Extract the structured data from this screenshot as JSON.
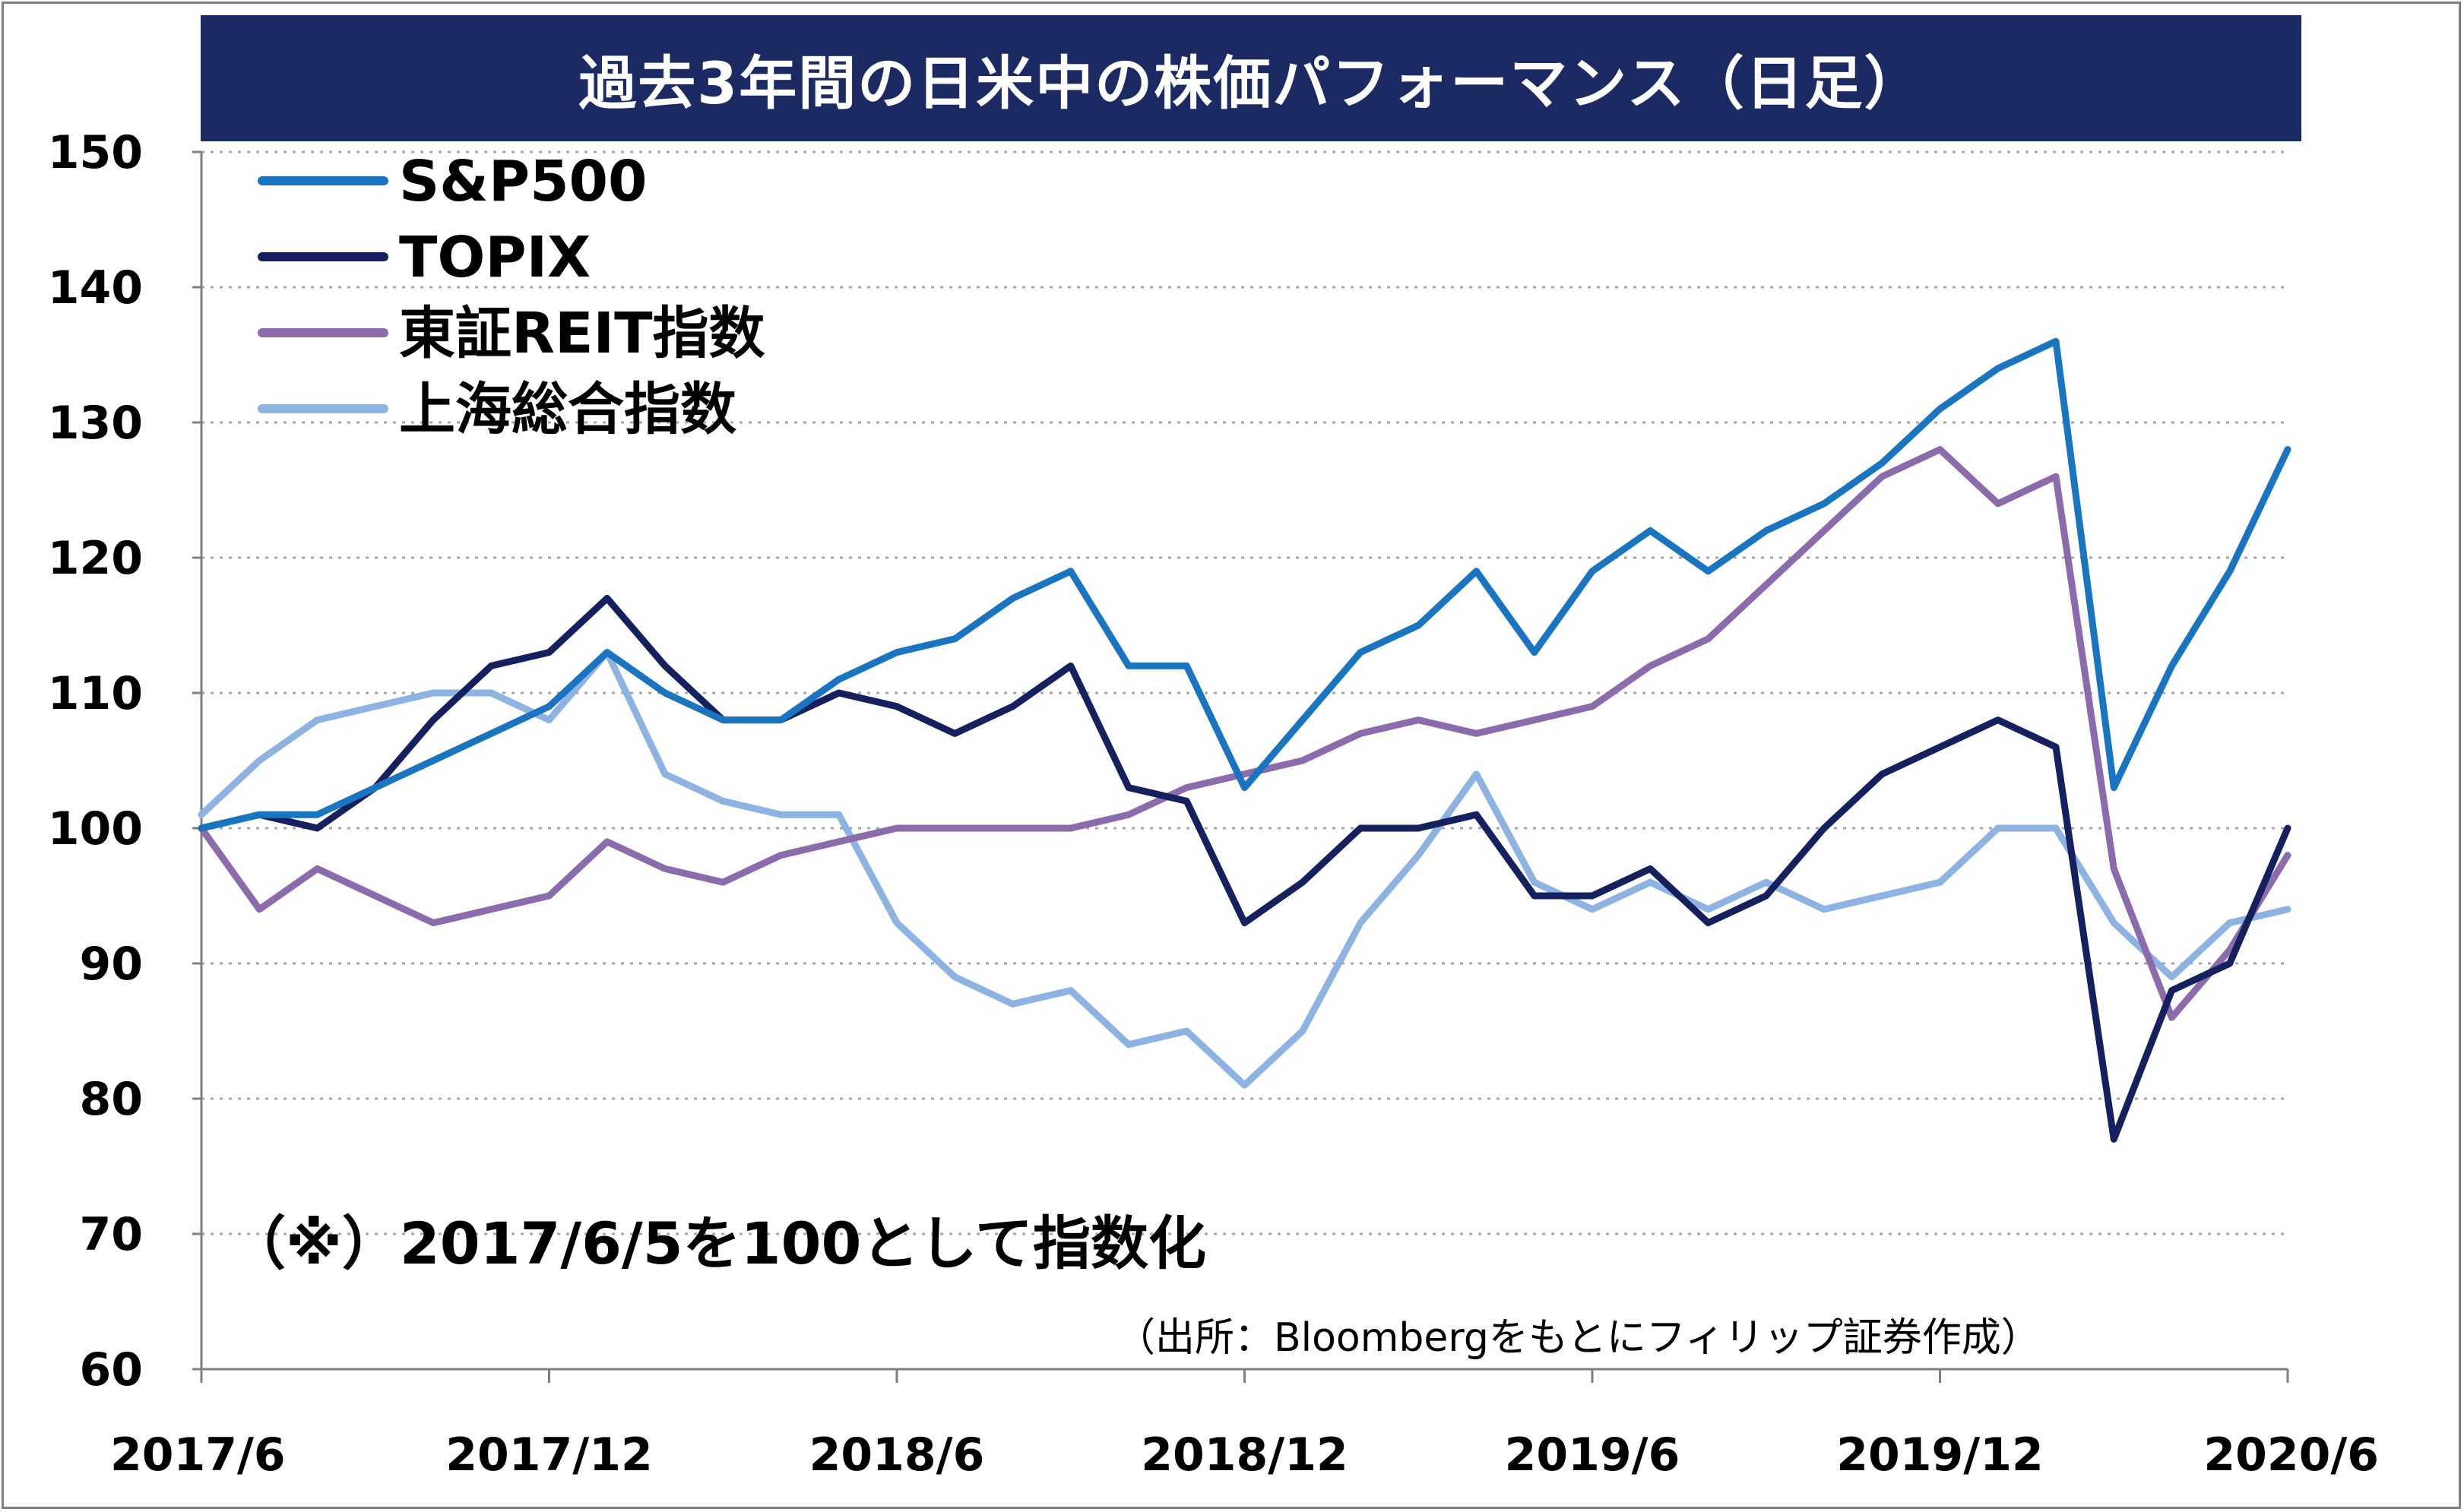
{
  "chart_data": {
    "type": "line",
    "title": "過去3年間の日米中の株価パフォーマンス（日足）",
    "xlabel": "",
    "ylabel": "",
    "x_ticks": [
      "2017/6",
      "2017/12",
      "2018/6",
      "2018/12",
      "2019/6",
      "2019/12",
      "2020/6"
    ],
    "x_range": [
      "2017/6",
      "2020/6"
    ],
    "y_ticks": [
      60,
      70,
      80,
      90,
      100,
      110,
      120,
      130,
      140,
      150
    ],
    "ylim": [
      60,
      150
    ],
    "grid": "horizontal dotted",
    "legend_position": "top-left",
    "note": "（※）2017/6/5を100として指数化",
    "source": "（出所：Bloombergをもとにフィリップ証券作成）",
    "x_dates": [
      "2017-06",
      "2017-07",
      "2017-08",
      "2017-09",
      "2017-10",
      "2017-11",
      "2017-12",
      "2018-01",
      "2018-02",
      "2018-03",
      "2018-04",
      "2018-05",
      "2018-06",
      "2018-07",
      "2018-08",
      "2018-09",
      "2018-10",
      "2018-11",
      "2018-12",
      "2019-01",
      "2019-02",
      "2019-03",
      "2019-04",
      "2019-05",
      "2019-06",
      "2019-07",
      "2019-08",
      "2019-09",
      "2019-10",
      "2019-11",
      "2019-12",
      "2020-01",
      "2020-02",
      "2020-03",
      "2020-04",
      "2020-05",
      "2020-06"
    ],
    "series": [
      {
        "name": "S&P500",
        "color": "#1a75c0",
        "values": [
          100,
          101,
          101,
          103,
          105,
          107,
          109,
          113,
          110,
          108,
          108,
          111,
          113,
          114,
          117,
          119,
          112,
          112,
          103,
          108,
          113,
          115,
          119,
          113,
          119,
          122,
          119,
          122,
          124,
          127,
          131,
          134,
          136,
          103,
          112,
          119,
          128
        ]
      },
      {
        "name": "TOPIX",
        "color": "#14215e",
        "values": [
          100,
          101,
          100,
          103,
          108,
          112,
          113,
          117,
          112,
          108,
          108,
          110,
          109,
          107,
          109,
          112,
          103,
          102,
          93,
          96,
          100,
          100,
          101,
          95,
          95,
          97,
          93,
          95,
          100,
          104,
          106,
          108,
          106,
          77,
          88,
          90,
          100
        ]
      },
      {
        "name": "東証REIT指数",
        "color": "#8c6bad",
        "values": [
          100,
          94,
          97,
          95,
          93,
          94,
          95,
          99,
          97,
          96,
          98,
          99,
          100,
          100,
          100,
          100,
          101,
          103,
          104,
          105,
          107,
          108,
          107,
          108,
          109,
          112,
          114,
          118,
          122,
          126,
          128,
          124,
          126,
          97,
          86,
          91,
          98
        ]
      },
      {
        "name": "上海総合指数",
        "color": "#8db3e2",
        "values": [
          101,
          105,
          108,
          109,
          110,
          110,
          108,
          113,
          104,
          102,
          101,
          101,
          93,
          89,
          87,
          88,
          84,
          85,
          81,
          85,
          93,
          98,
          104,
          96,
          94,
          96,
          94,
          96,
          94,
          95,
          96,
          100,
          100,
          93,
          89,
          93,
          94
        ]
      }
    ]
  }
}
